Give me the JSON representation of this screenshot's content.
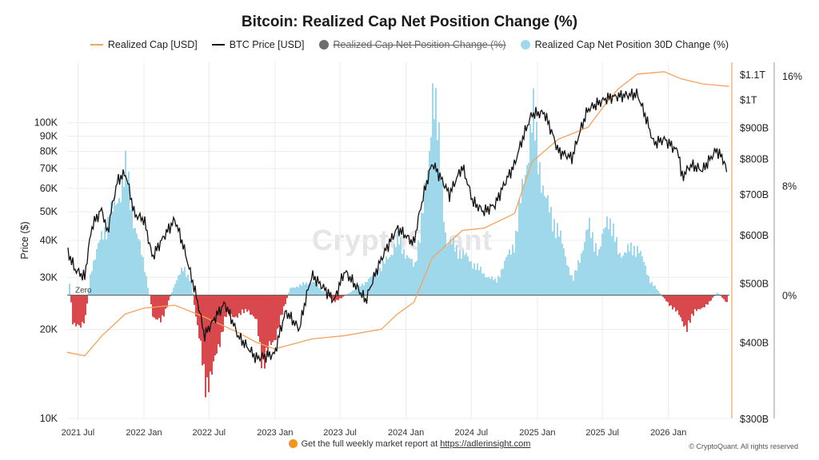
{
  "title": "Bitcoin: Realized Cap Net Position Change (%)",
  "legend": [
    {
      "label": "Realized Cap [USD]",
      "kind": "line",
      "color": "#f5a25d",
      "struck": false
    },
    {
      "label": "BTC Price [USD]",
      "kind": "line",
      "color": "#111111",
      "struck": false
    },
    {
      "label": "Realized Cap Net Position Change (%)",
      "kind": "dot",
      "color": "#6d6d72",
      "struck": true
    },
    {
      "label": "Realized Cap Net Position 30D Change (%)",
      "kind": "dot",
      "color": "#9fd8ea",
      "struck": false
    }
  ],
  "watermark": "CryptoQuant",
  "footer": {
    "text": "Get the full weekly market report at ",
    "link": "https://adlerinsight.com"
  },
  "copyright": "© CryptoQuant. All rights reserved",
  "colors": {
    "positive": "#9fd8ea",
    "negative": "#d9484c",
    "price": "#111111",
    "realized_cap": "#f5a25d"
  },
  "chart_data": {
    "type": "line",
    "x_type": "date",
    "x_ticks": [
      "2021 Jul",
      "2022 Jan",
      "2022 Jul",
      "2023 Jan",
      "2023 Jul",
      "2024 Jan",
      "2024 Jul",
      "2025 Jan",
      "2025 Jul",
      "2026 Jan"
    ],
    "y_left": {
      "label": "Price ($)",
      "scale": "log",
      "range": [
        10000,
        160000
      ],
      "ticks": [
        "10K",
        "20K",
        "30K",
        "40K",
        "50K",
        "60K",
        "70K",
        "80K",
        "90K",
        "100K"
      ]
    },
    "y_right_cap": {
      "scale": "log",
      "range": [
        300000000000,
        1150000000000
      ],
      "ticks": [
        "$300B",
        "$400B",
        "$500B",
        "$600B",
        "$700B",
        "$800B",
        "$900B",
        "$1T",
        "$1.1T"
      ]
    },
    "y_right_pct": {
      "range": [
        -9,
        17
      ],
      "ticks": [
        "0%",
        "8%",
        "16%"
      ]
    },
    "zero_label": "Zero",
    "series": [
      {
        "name": "BTC Price [USD]",
        "points": [
          [
            "2021-06-01",
            37000
          ],
          [
            "2021-06-22",
            32000
          ],
          [
            "2021-07-20",
            30000
          ],
          [
            "2021-08-10",
            45000
          ],
          [
            "2021-09-06",
            51000
          ],
          [
            "2021-09-21",
            42000
          ],
          [
            "2021-10-20",
            64000
          ],
          [
            "2021-11-10",
            67500
          ],
          [
            "2021-12-05",
            49000
          ],
          [
            "2022-01-01",
            47000
          ],
          [
            "2022-01-24",
            35000
          ],
          [
            "2022-03-28",
            47000
          ],
          [
            "2022-05-10",
            31000
          ],
          [
            "2022-06-18",
            19000
          ],
          [
            "2022-08-14",
            24500
          ],
          [
            "2022-09-20",
            19000
          ],
          [
            "2022-11-09",
            16000
          ],
          [
            "2022-12-31",
            16500
          ],
          [
            "2023-01-31",
            23000
          ],
          [
            "2023-03-10",
            20000
          ],
          [
            "2023-04-14",
            30500
          ],
          [
            "2023-06-15",
            25000
          ],
          [
            "2023-07-14",
            31500
          ],
          [
            "2023-09-11",
            25000
          ],
          [
            "2023-10-24",
            34500
          ],
          [
            "2023-12-08",
            44000
          ],
          [
            "2024-01-23",
            39000
          ],
          [
            "2024-03-14",
            73000
          ],
          [
            "2024-05-01",
            57000
          ],
          [
            "2024-06-06",
            71000
          ],
          [
            "2024-07-05",
            54000
          ],
          [
            "2024-08-05",
            50000
          ],
          [
            "2024-09-06",
            53000
          ],
          [
            "2024-10-29",
            72000
          ],
          [
            "2024-12-17",
            107000
          ],
          [
            "2025-01-20",
            108000
          ],
          [
            "2025-02-28",
            80000
          ],
          [
            "2025-04-08",
            76000
          ],
          [
            "2025-05-22",
            111000
          ],
          [
            "2025-07-14",
            121000
          ],
          [
            "2025-08-14",
            123000
          ],
          [
            "2025-10-06",
            125000
          ],
          [
            "2025-11-21",
            85000
          ],
          [
            "2025-12-20",
            88000
          ],
          [
            "2026-01-31",
            79000
          ],
          [
            "2026-02-06",
            65000
          ],
          [
            "2026-03-05",
            72000
          ],
          [
            "2026-04-06",
            69000
          ],
          [
            "2026-05-15",
            81000
          ],
          [
            "2026-06-06",
            74000
          ],
          [
            "2026-06-19",
            61000
          ]
        ]
      },
      {
        "name": "Realized Cap [USD]",
        "points": [
          [
            "2021-06-01",
            385000000000
          ],
          [
            "2021-07-20",
            380000000000
          ],
          [
            "2021-09-06",
            410000000000
          ],
          [
            "2021-11-10",
            445000000000
          ],
          [
            "2022-01-01",
            455000000000
          ],
          [
            "2022-03-28",
            460000000000
          ],
          [
            "2022-06-18",
            440000000000
          ],
          [
            "2022-09-20",
            415000000000
          ],
          [
            "2022-11-09",
            400000000000
          ],
          [
            "2022-12-31",
            390000000000
          ],
          [
            "2023-04-14",
            405000000000
          ],
          [
            "2023-07-14",
            410000000000
          ],
          [
            "2023-10-24",
            420000000000
          ],
          [
            "2023-12-08",
            445000000000
          ],
          [
            "2024-01-23",
            465000000000
          ],
          [
            "2024-03-14",
            550000000000
          ],
          [
            "2024-06-06",
            610000000000
          ],
          [
            "2024-08-05",
            615000000000
          ],
          [
            "2024-10-29",
            650000000000
          ],
          [
            "2024-12-17",
            790000000000
          ],
          [
            "2025-02-28",
            860000000000
          ],
          [
            "2025-05-22",
            900000000000
          ],
          [
            "2025-07-14",
            990000000000
          ],
          [
            "2025-08-14",
            1040000000000
          ],
          [
            "2025-10-06",
            1100000000000
          ],
          [
            "2025-12-20",
            1110000000000
          ],
          [
            "2026-02-06",
            1080000000000
          ],
          [
            "2026-04-06",
            1060000000000
          ],
          [
            "2026-06-19",
            1050000000000
          ]
        ]
      },
      {
        "name": "Realized Cap Net Position 30D Change (%)",
        "points": [
          [
            "2021-06-01",
            2.0
          ],
          [
            "2021-06-15",
            -2.0
          ],
          [
            "2021-07-05",
            -2.5
          ],
          [
            "2021-07-20",
            -1.5
          ],
          [
            "2021-08-05",
            2.0
          ],
          [
            "2021-09-06",
            4.5
          ],
          [
            "2021-10-10",
            6.5
          ],
          [
            "2021-11-10",
            9.0
          ],
          [
            "2021-12-05",
            5.0
          ],
          [
            "2022-01-01",
            2.0
          ],
          [
            "2022-01-24",
            -1.5
          ],
          [
            "2022-02-15",
            -2.0
          ],
          [
            "2022-03-28",
            1.0
          ],
          [
            "2022-04-20",
            2.0
          ],
          [
            "2022-05-10",
            1.0
          ],
          [
            "2022-06-01",
            -3.0
          ],
          [
            "2022-06-18",
            -6.5
          ],
          [
            "2022-07-10",
            -5.5
          ],
          [
            "2022-08-14",
            -1.5
          ],
          [
            "2022-09-20",
            -1.5
          ],
          [
            "2022-10-15",
            -1.0
          ],
          [
            "2022-11-09",
            -2.0
          ],
          [
            "2022-11-25",
            -5.0
          ],
          [
            "2022-12-31",
            -3.0
          ],
          [
            "2023-02-10",
            0.5
          ],
          [
            "2023-04-14",
            1.0
          ],
          [
            "2023-06-15",
            -0.5
          ],
          [
            "2023-09-11",
            1.0
          ],
          [
            "2023-10-24",
            2.0
          ],
          [
            "2023-12-08",
            4.0
          ],
          [
            "2024-01-23",
            2.0
          ],
          [
            "2024-03-01",
            9.0
          ],
          [
            "2024-03-14",
            16.0
          ],
          [
            "2024-04-20",
            4.0
          ],
          [
            "2024-06-06",
            3.0
          ],
          [
            "2024-08-05",
            1.5
          ],
          [
            "2024-09-06",
            1.0
          ],
          [
            "2024-10-29",
            4.0
          ],
          [
            "2024-12-17",
            13.0
          ],
          [
            "2025-01-20",
            7.0
          ],
          [
            "2025-02-28",
            4.5
          ],
          [
            "2025-04-08",
            1.0
          ],
          [
            "2025-05-22",
            5.0
          ],
          [
            "2025-06-20",
            3.0
          ],
          [
            "2025-07-14",
            6.0
          ],
          [
            "2025-08-14",
            3.0
          ],
          [
            "2025-10-06",
            3.5
          ],
          [
            "2025-11-10",
            1.0
          ],
          [
            "2025-12-20",
            -0.3
          ],
          [
            "2026-01-31",
            -1.5
          ],
          [
            "2026-02-20",
            -2.5
          ],
          [
            "2026-03-15",
            -1.0
          ],
          [
            "2026-04-06",
            -1.0
          ],
          [
            "2026-05-15",
            0.2
          ],
          [
            "2026-06-10",
            -0.5
          ],
          [
            "2026-06-19",
            -1.0
          ]
        ]
      }
    ]
  }
}
